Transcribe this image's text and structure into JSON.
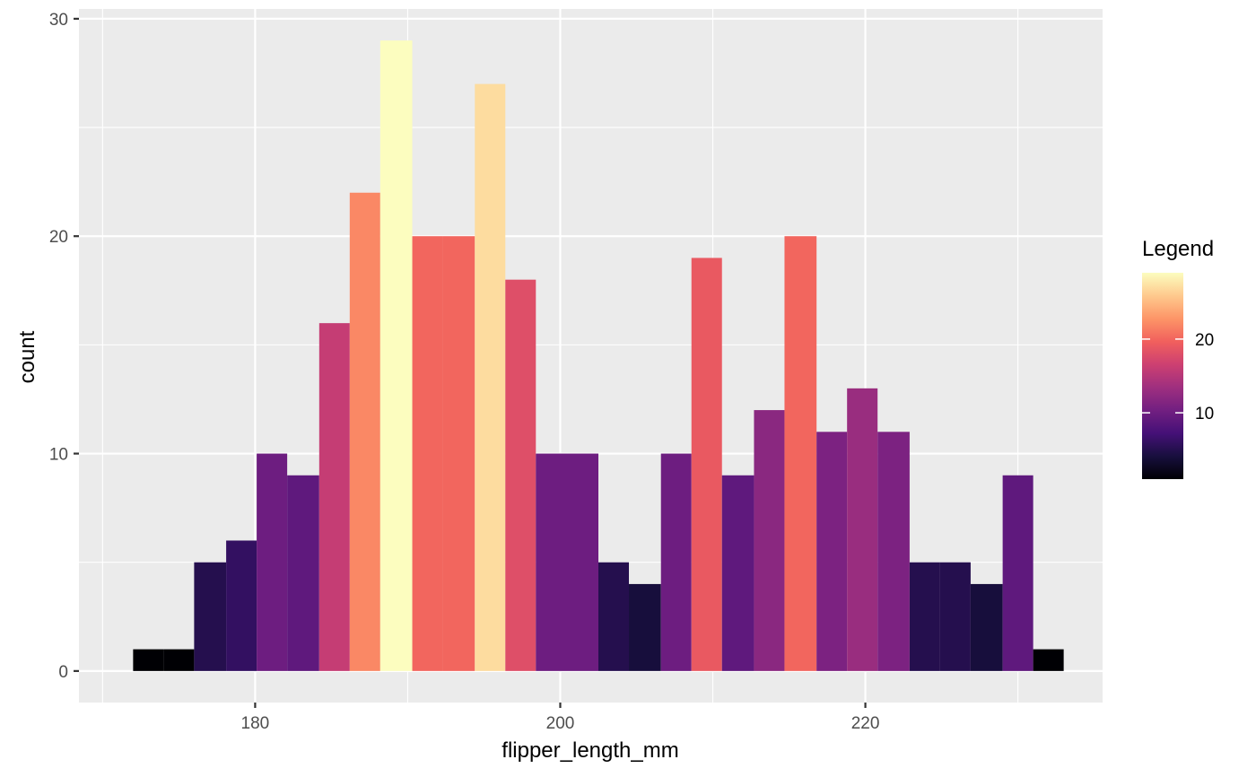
{
  "chart_data": {
    "type": "bar",
    "subtype": "histogram",
    "xlabel": "flipper_length_mm",
    "ylabel": "count",
    "xlim": [
      168.45,
      235.55
    ],
    "ylim": [
      -1.45,
      30.45
    ],
    "x_ticks": [
      180,
      200,
      220
    ],
    "y_ticks": [
      0,
      10,
      20,
      30
    ],
    "bins": [
      {
        "start": 172.0,
        "end": 174.0,
        "count": 1
      },
      {
        "start": 174.0,
        "end": 176.0,
        "count": 1
      },
      {
        "start": 176.0,
        "end": 178.1,
        "count": 5
      },
      {
        "start": 178.1,
        "end": 180.1,
        "count": 6
      },
      {
        "start": 180.1,
        "end": 182.1,
        "count": 10
      },
      {
        "start": 182.1,
        "end": 184.2,
        "count": 9
      },
      {
        "start": 184.2,
        "end": 186.2,
        "count": 16
      },
      {
        "start": 186.2,
        "end": 188.2,
        "count": 22
      },
      {
        "start": 188.2,
        "end": 190.3,
        "count": 29
      },
      {
        "start": 190.3,
        "end": 192.3,
        "count": 20
      },
      {
        "start": 192.3,
        "end": 194.4,
        "count": 20
      },
      {
        "start": 194.4,
        "end": 196.4,
        "count": 27
      },
      {
        "start": 196.4,
        "end": 198.4,
        "count": 18
      },
      {
        "start": 198.4,
        "end": 200.5,
        "count": 10
      },
      {
        "start": 200.5,
        "end": 202.5,
        "count": 10
      },
      {
        "start": 202.5,
        "end": 204.5,
        "count": 5
      },
      {
        "start": 204.5,
        "end": 206.6,
        "count": 4
      },
      {
        "start": 206.6,
        "end": 208.6,
        "count": 10
      },
      {
        "start": 208.6,
        "end": 210.6,
        "count": 19
      },
      {
        "start": 210.6,
        "end": 212.7,
        "count": 9
      },
      {
        "start": 212.7,
        "end": 214.7,
        "count": 12
      },
      {
        "start": 214.7,
        "end": 216.8,
        "count": 20
      },
      {
        "start": 216.8,
        "end": 218.8,
        "count": 11
      },
      {
        "start": 218.8,
        "end": 220.8,
        "count": 13
      },
      {
        "start": 220.8,
        "end": 222.9,
        "count": 11
      },
      {
        "start": 222.9,
        "end": 224.9,
        "count": 5
      },
      {
        "start": 224.9,
        "end": 226.9,
        "count": 5
      },
      {
        "start": 226.9,
        "end": 229.0,
        "count": 4
      },
      {
        "start": 229.0,
        "end": 231.0,
        "count": 9
      },
      {
        "start": 231.0,
        "end": 233.0,
        "count": 1
      }
    ],
    "fill_mapped_to": "count",
    "legend": {
      "title": "Legend",
      "type": "colorbar",
      "palette": "magma",
      "range": [
        1,
        29
      ],
      "breaks": [
        10,
        20
      ],
      "labels": [
        "10",
        "20"
      ],
      "placement": "right"
    },
    "grid": true,
    "panel_background": "#EBEBEB",
    "grid_color": "#FFFFFF",
    "colors": {
      "magma_stops": [
        "#000004",
        "#180F3E",
        "#451077",
        "#721F81",
        "#9F2F7F",
        "#CD4071",
        "#F1605D",
        "#FD9567",
        "#FEC98D",
        "#FCFDBF"
      ]
    }
  }
}
